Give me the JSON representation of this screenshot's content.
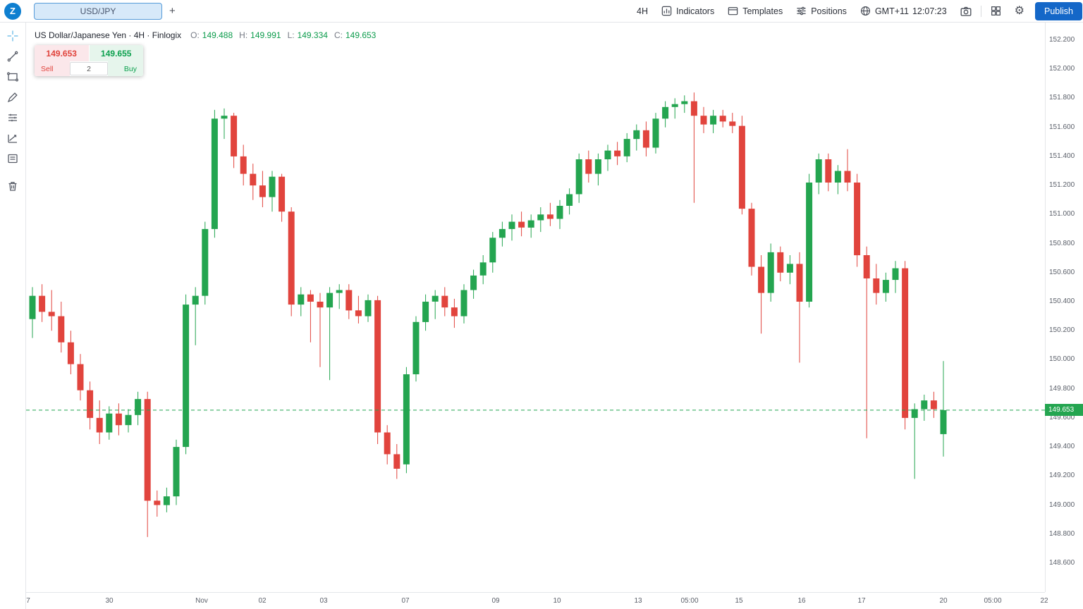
{
  "header": {
    "logo_letter": "Z",
    "symbol_tab": "USD/JPY",
    "add_tab_label": "+",
    "timeframe": "4H",
    "indicators": "Indicators",
    "templates": "Templates",
    "positions": "Positions",
    "timezone": "GMT+11",
    "clock": "12:07:23",
    "publish": "Publish"
  },
  "toolbar_icons": [
    "crosshair-tool",
    "trendline-tool",
    "shapes-tool",
    "brush-tool",
    "pattern-lines-tool",
    "forecast-tool",
    "notes-tool",
    "delete-tool"
  ],
  "legend": {
    "title": "US Dollar/Japanese Yen · 4H · Finlogix",
    "open_label": "O:",
    "open": "149.488",
    "high_label": "H:",
    "high": "149.991",
    "low_label": "L:",
    "low": "149.334",
    "close_label": "C:",
    "close": "149.653"
  },
  "order_widget": {
    "sell_price": "149.653",
    "buy_price": "149.655",
    "sell_label": "Sell",
    "buy_label": "Buy",
    "quantity": "2"
  },
  "current_price": {
    "value": "149.653"
  },
  "colors": {
    "up": "#24a550",
    "down": "#e1443d",
    "accent_blue": "#1467c8"
  },
  "chart_data": {
    "type": "candlestick",
    "symbol": "USD/JPY",
    "timeframe": "4H",
    "current_price": 149.653,
    "price_axis_ticks": [
      "152.200",
      "152.000",
      "151.800",
      "151.600",
      "151.400",
      "151.200",
      "151.000",
      "150.800",
      "150.600",
      "150.400",
      "150.200",
      "150.000",
      "149.800",
      "149.600",
      "149.400",
      "149.200",
      "149.000",
      "148.800",
      "148.600"
    ],
    "time_axis_labels": [
      {
        "text": "7",
        "x": 0.002
      },
      {
        "text": "30",
        "x": 0.082
      },
      {
        "text": "Nov",
        "x": 0.172
      },
      {
        "text": "02",
        "x": 0.232
      },
      {
        "text": "03",
        "x": 0.292
      },
      {
        "text": "07",
        "x": 0.372
      },
      {
        "text": "09",
        "x": 0.461
      },
      {
        "text": "10",
        "x": 0.521
      },
      {
        "text": "13",
        "x": 0.601
      },
      {
        "text": "05:00",
        "x": 0.651
      },
      {
        "text": "15",
        "x": 0.7
      },
      {
        "text": "16",
        "x": 0.761
      },
      {
        "text": "17",
        "x": 0.82
      },
      {
        "text": "20",
        "x": 0.9
      },
      {
        "text": "05:00",
        "x": 0.949
      },
      {
        "text": "22",
        "x": 0.999
      }
    ],
    "candles": [
      [
        150.28,
        150.5,
        150.15,
        150.44
      ],
      [
        150.44,
        150.52,
        150.26,
        150.33
      ],
      [
        150.33,
        150.48,
        150.2,
        150.3
      ],
      [
        150.3,
        150.4,
        150.05,
        150.12
      ],
      [
        150.12,
        150.2,
        149.9,
        149.97
      ],
      [
        149.97,
        150.04,
        149.72,
        149.79
      ],
      [
        149.79,
        149.85,
        149.52,
        149.6
      ],
      [
        149.6,
        149.72,
        149.42,
        149.5
      ],
      [
        149.5,
        149.68,
        149.45,
        149.63
      ],
      [
        149.63,
        149.7,
        149.48,
        149.55
      ],
      [
        149.55,
        149.66,
        149.5,
        149.62
      ],
      [
        149.62,
        149.78,
        149.55,
        149.73
      ],
      [
        149.73,
        149.78,
        148.78,
        149.03
      ],
      [
        149.03,
        149.1,
        148.92,
        149.0
      ],
      [
        149.0,
        149.12,
        148.95,
        149.06
      ],
      [
        149.06,
        149.45,
        149.0,
        149.4
      ],
      [
        149.4,
        150.45,
        149.35,
        150.38
      ],
      [
        150.38,
        150.5,
        150.1,
        150.44
      ],
      [
        150.44,
        150.95,
        150.38,
        150.9
      ],
      [
        150.9,
        151.72,
        150.84,
        151.66
      ],
      [
        151.66,
        151.73,
        151.52,
        151.68
      ],
      [
        151.68,
        151.7,
        151.32,
        151.4
      ],
      [
        151.4,
        151.48,
        151.2,
        151.28
      ],
      [
        151.28,
        151.35,
        151.1,
        151.2
      ],
      [
        151.2,
        151.3,
        151.05,
        151.12
      ],
      [
        151.12,
        151.3,
        151.02,
        151.26
      ],
      [
        151.26,
        151.28,
        150.95,
        151.02
      ],
      [
        151.02,
        151.05,
        150.3,
        150.38
      ],
      [
        150.38,
        150.5,
        150.3,
        150.45
      ],
      [
        150.45,
        150.48,
        150.12,
        150.4
      ],
      [
        150.4,
        150.46,
        149.95,
        150.36
      ],
      [
        150.36,
        150.5,
        149.86,
        150.46
      ],
      [
        150.46,
        150.52,
        150.35,
        150.48
      ],
      [
        150.48,
        150.52,
        150.28,
        150.34
      ],
      [
        150.34,
        150.44,
        150.25,
        150.3
      ],
      [
        150.3,
        150.45,
        150.26,
        150.41
      ],
      [
        150.41,
        150.44,
        149.42,
        149.5
      ],
      [
        149.5,
        149.55,
        149.28,
        149.35
      ],
      [
        149.35,
        149.42,
        149.18,
        149.25
      ],
      [
        149.28,
        149.95,
        149.22,
        149.9
      ],
      [
        149.9,
        150.3,
        149.85,
        150.26
      ],
      [
        150.26,
        150.45,
        150.2,
        150.4
      ],
      [
        150.4,
        150.48,
        150.28,
        150.44
      ],
      [
        150.44,
        150.5,
        150.3,
        150.36
      ],
      [
        150.36,
        150.42,
        150.22,
        150.3
      ],
      [
        150.3,
        150.52,
        150.25,
        150.48
      ],
      [
        150.48,
        150.62,
        150.42,
        150.58
      ],
      [
        150.58,
        150.72,
        150.52,
        150.67
      ],
      [
        150.67,
        150.88,
        150.6,
        150.84
      ],
      [
        150.84,
        150.95,
        150.78,
        150.9
      ],
      [
        150.9,
        151.0,
        150.82,
        150.95
      ],
      [
        150.95,
        151.02,
        150.85,
        150.91
      ],
      [
        150.91,
        151.0,
        150.84,
        150.96
      ],
      [
        150.96,
        151.05,
        150.88,
        151.0
      ],
      [
        151.0,
        151.08,
        150.92,
        150.97
      ],
      [
        150.97,
        151.1,
        150.9,
        151.06
      ],
      [
        151.06,
        151.18,
        151.0,
        151.14
      ],
      [
        151.14,
        151.42,
        151.08,
        151.38
      ],
      [
        151.38,
        151.44,
        151.22,
        151.28
      ],
      [
        151.28,
        151.42,
        151.2,
        151.38
      ],
      [
        151.38,
        151.48,
        151.3,
        151.44
      ],
      [
        151.44,
        151.5,
        151.34,
        151.4
      ],
      [
        151.4,
        151.56,
        151.36,
        151.52
      ],
      [
        151.52,
        151.62,
        151.44,
        151.58
      ],
      [
        151.58,
        151.64,
        151.4,
        151.46
      ],
      [
        151.46,
        151.7,
        151.42,
        151.66
      ],
      [
        151.66,
        151.78,
        151.6,
        151.74
      ],
      [
        151.74,
        151.8,
        151.66,
        151.76
      ],
      [
        151.76,
        151.82,
        151.7,
        151.78
      ],
      [
        151.78,
        151.84,
        151.08,
        151.68
      ],
      [
        151.68,
        151.74,
        151.56,
        151.62
      ],
      [
        151.62,
        151.72,
        151.56,
        151.68
      ],
      [
        151.68,
        151.72,
        151.6,
        151.64
      ],
      [
        151.64,
        151.7,
        151.56,
        151.61
      ],
      [
        151.61,
        151.68,
        151.0,
        151.04
      ],
      [
        151.04,
        151.08,
        150.58,
        150.64
      ],
      [
        150.64,
        150.72,
        150.18,
        150.46
      ],
      [
        150.46,
        150.8,
        150.4,
        150.74
      ],
      [
        150.74,
        150.78,
        150.54,
        150.6
      ],
      [
        150.6,
        150.72,
        150.52,
        150.66
      ],
      [
        150.66,
        150.74,
        149.98,
        150.4
      ],
      [
        150.4,
        151.28,
        150.36,
        151.22
      ],
      [
        151.22,
        151.42,
        151.14,
        151.38
      ],
      [
        151.38,
        151.42,
        151.16,
        151.22
      ],
      [
        151.22,
        151.34,
        151.14,
        151.3
      ],
      [
        151.3,
        151.45,
        151.16,
        151.22
      ],
      [
        151.22,
        151.28,
        150.64,
        150.72
      ],
      [
        150.72,
        150.78,
        149.46,
        150.56
      ],
      [
        150.56,
        150.66,
        150.38,
        150.46
      ],
      [
        150.46,
        150.6,
        150.4,
        150.55
      ],
      [
        150.55,
        150.68,
        150.46,
        150.63
      ],
      [
        150.63,
        150.68,
        149.52,
        149.6
      ],
      [
        149.6,
        149.7,
        149.18,
        149.66
      ],
      [
        149.66,
        149.76,
        149.58,
        149.72
      ],
      [
        149.72,
        149.78,
        149.6,
        149.66
      ],
      [
        149.488,
        149.991,
        149.334,
        149.653
      ]
    ]
  }
}
